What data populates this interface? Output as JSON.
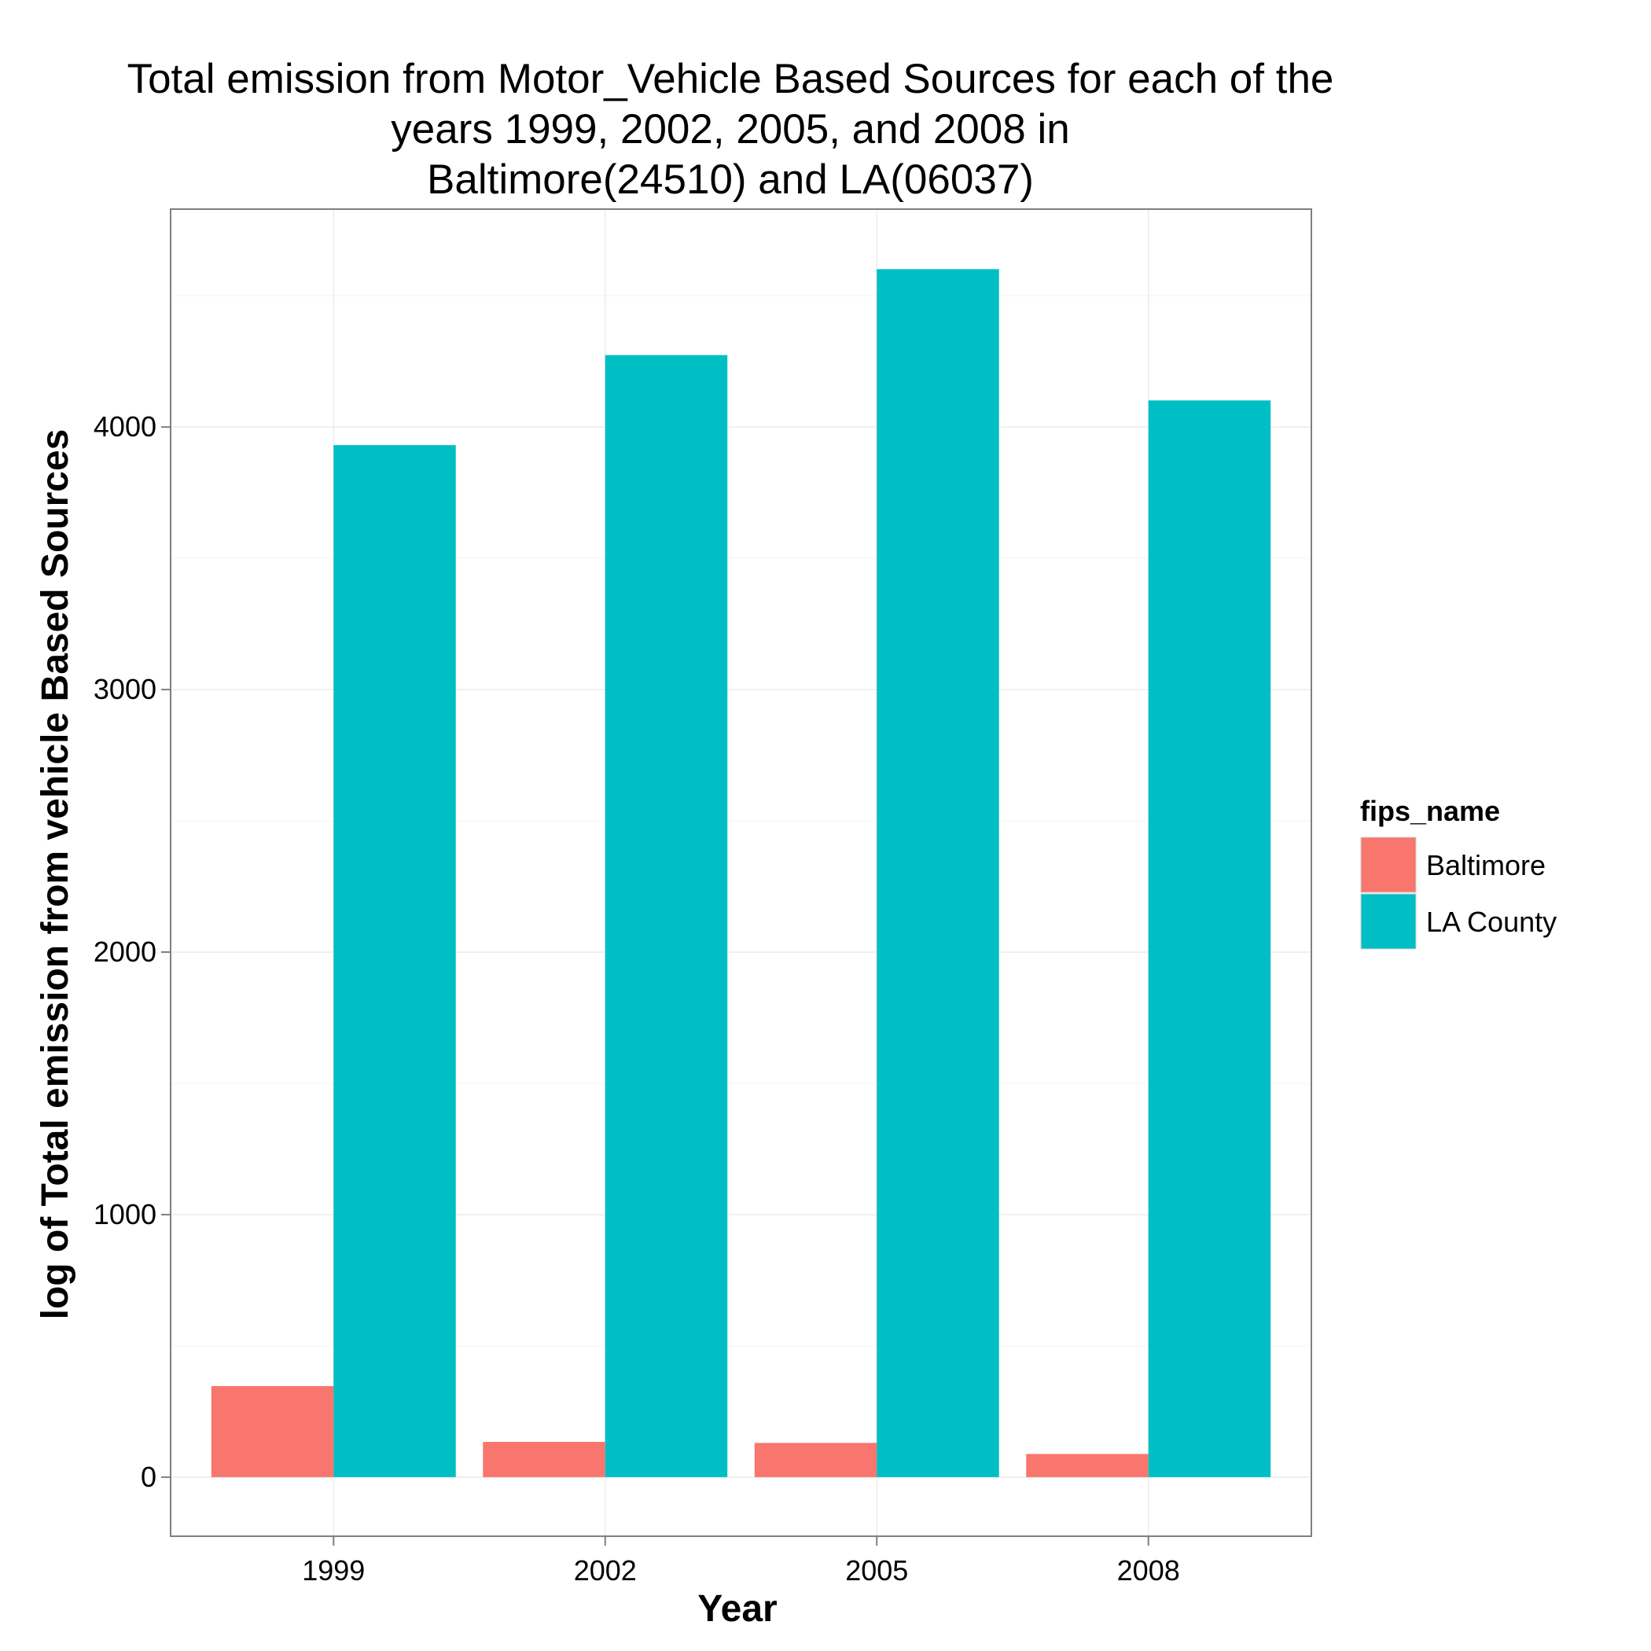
{
  "chart_data": {
    "type": "bar",
    "title_lines": [
      "Total emission from Motor_Vehicle Based Sources for each of the",
      "years 1999, 2002, 2005, and 2008 in",
      "Baltimore(24510) and LA(06037)"
    ],
    "xlabel": "Year",
    "ylabel": "log of Total emission from vehicle Based Sources",
    "categories": [
      "1999",
      "2002",
      "2005",
      "2008"
    ],
    "series": [
      {
        "name": "Baltimore",
        "color": "#F8766D",
        "values": [
          346.82,
          134.31,
          130.43,
          88.28
        ]
      },
      {
        "name": "LA County",
        "color": "#00BFC4",
        "values": [
          3931.12,
          4274.03,
          4601.41,
          4101.32
        ]
      }
    ],
    "ylim": [
      -225,
      4830
    ],
    "yticks": [
      0,
      1000,
      2000,
      3000,
      4000
    ],
    "ytick_labels": [
      "0",
      "1000",
      "2000",
      "3000",
      "4000"
    ],
    "grid": true,
    "legend": {
      "title": "fips_name",
      "position": "right",
      "entries": [
        "Baltimore",
        "LA County"
      ]
    }
  }
}
